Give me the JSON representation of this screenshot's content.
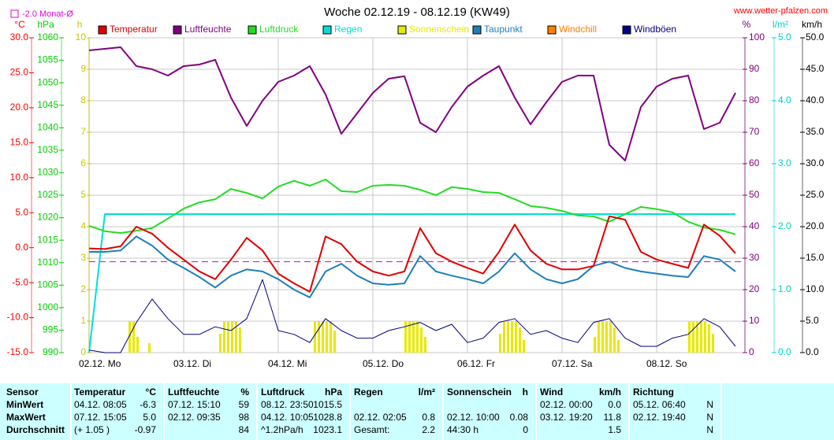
{
  "chart_data": {
    "type": "line",
    "title": "Woche 02.12.19 - 08.12.19 (KW49)",
    "source": "www.wetter-pfalzen.com",
    "monthly_mean": {
      "value": -2.0,
      "label": "-2.0 Monat-Ø",
      "color": "#dd00dd"
    },
    "categories": [
      "02.12.  Mo",
      "03.12.  Di",
      "04.12.  Mi",
      "05.12.  Do",
      "06.12.  Fr",
      "07.12.  Sa",
      "08.12.  So"
    ],
    "x": [
      0,
      4,
      8,
      12,
      16,
      20,
      24,
      28,
      32,
      36,
      40,
      44,
      48,
      52,
      56,
      60,
      64,
      68,
      72,
      76,
      80,
      84,
      88,
      92,
      96,
      100,
      104,
      108,
      112,
      116,
      120,
      124,
      128,
      132,
      136,
      140,
      144,
      148,
      152,
      156,
      160,
      164
    ],
    "xlim": [
      0,
      166.4
    ],
    "grid": true,
    "axes": {
      "temp": {
        "label": "°C",
        "color": "#ff0000",
        "ylim": [
          -15,
          30
        ],
        "yticks": [
          {
            "value": -15,
            "label": "-15.0"
          },
          {
            "value": -10,
            "label": "-10.0"
          },
          {
            "value": -5,
            "label": "-5.0"
          },
          {
            "value": 0,
            "label": "0.0"
          },
          {
            "value": 5,
            "label": "5.0"
          },
          {
            "value": 10,
            "label": "10.0"
          },
          {
            "value": 15,
            "label": "15.0"
          },
          {
            "value": 20,
            "label": "20.0"
          },
          {
            "value": 25,
            "label": "25.0"
          },
          {
            "value": 30,
            "label": "30.0"
          }
        ]
      },
      "pressure": {
        "label": "hPa",
        "color": "#00cc00",
        "ylim": [
          990,
          1060
        ],
        "yticks": [
          990,
          995,
          1000,
          1005,
          1010,
          1015,
          1020,
          1025,
          1030,
          1035,
          1040,
          1045,
          1050,
          1055,
          1060
        ]
      },
      "sun": {
        "label": "h",
        "color": "#c8c800",
        "ylim": [
          0,
          10
        ],
        "yticks": [
          0,
          1,
          2,
          3,
          4,
          5,
          6,
          7,
          8,
          9,
          10
        ]
      },
      "hum": {
        "label": "%",
        "color": "#800080",
        "ylim": [
          0,
          100
        ],
        "yticks": [
          0,
          10,
          20,
          30,
          40,
          50,
          60,
          70,
          80,
          90,
          100
        ]
      },
      "rain": {
        "label": "l/m²",
        "color": "#00cccc",
        "ylim": [
          0,
          5
        ],
        "yticks": [
          {
            "value": 0,
            "label": "0.0"
          },
          {
            "value": 1,
            "label": "1.0"
          },
          {
            "value": 2,
            "label": "2.0"
          },
          {
            "value": 3,
            "label": "3.0"
          },
          {
            "value": 4,
            "label": "4.0"
          },
          {
            "value": 5,
            "label": "5.0"
          }
        ]
      },
      "wind": {
        "label": "km/h",
        "color": "#000000",
        "ylim": [
          0,
          50
        ],
        "yticks": [
          {
            "value": 0,
            "label": "0.0"
          },
          {
            "value": 5,
            "label": "5.0"
          },
          {
            "value": 10,
            "label": "10.0"
          },
          {
            "value": 15,
            "label": "15.0"
          },
          {
            "value": 20,
            "label": "20.0"
          },
          {
            "value": 25,
            "label": "25.0"
          },
          {
            "value": 30,
            "label": "30.0"
          },
          {
            "value": 35,
            "label": "35.0"
          },
          {
            "value": 40,
            "label": "40.0"
          },
          {
            "value": 45,
            "label": "45.0"
          },
          {
            "value": 50,
            "label": "50.0"
          }
        ]
      }
    },
    "series": [
      {
        "name": "Temperatur",
        "color": "#e00000",
        "axis": "temp",
        "values": [
          -0.1,
          -0.2,
          0.2,
          3.0,
          2.0,
          0.0,
          -1.7,
          -3.4,
          -4.5,
          -1.7,
          1.4,
          -0.4,
          -3.7,
          -5.1,
          -6.3,
          1.6,
          0.5,
          -2.0,
          -3.4,
          -4.0,
          -3.4,
          2.8,
          -0.8,
          -2.0,
          -2.9,
          -3.7,
          -0.6,
          3.3,
          -0.4,
          -2.3,
          -3.1,
          -3.1,
          -2.6,
          4.5,
          4.0,
          -0.6,
          -1.7,
          -2.3,
          -2.9,
          3.3,
          1.7,
          -0.8
        ]
      },
      {
        "name": "Luftfeuchte",
        "color": "#800080",
        "axis": "hum",
        "values": [
          96,
          96.5,
          97,
          91,
          90,
          88,
          91,
          91.5,
          93,
          81,
          72,
          80,
          86,
          88,
          91,
          82,
          69.5,
          76,
          82.5,
          87,
          87.8,
          73,
          70,
          78,
          84.5,
          88,
          91,
          81,
          72.5,
          79.5,
          86,
          88,
          88,
          66,
          61,
          78,
          84.5,
          87,
          88,
          71,
          73,
          82.5
        ]
      },
      {
        "name": "Luftdruck",
        "color": "#22dd22",
        "axis": "pressure",
        "values": [
          1018.2,
          1017.0,
          1016.6,
          1017.1,
          1017.7,
          1019.8,
          1022.0,
          1023.4,
          1024.1,
          1026.4,
          1025.5,
          1024.3,
          1026.9,
          1028.2,
          1027.1,
          1028.5,
          1025.9,
          1025.7,
          1027.1,
          1027.3,
          1027.1,
          1026.2,
          1025.0,
          1026.8,
          1026.4,
          1025.7,
          1025.5,
          1024.1,
          1022.6,
          1022.2,
          1021.5,
          1020.5,
          1020.3,
          1019.1,
          1020.8,
          1022.4,
          1021.9,
          1021.2,
          1019.1,
          1017.8,
          1017.3,
          1016.3
        ]
      },
      {
        "name": "Regen",
        "color": "#00dddd",
        "axis": "rain",
        "values": [
          0,
          2.2,
          2.2,
          2.2,
          2.2,
          2.2,
          2.2,
          2.2,
          2.2,
          2.2,
          2.2,
          2.2,
          2.2,
          2.2,
          2.2,
          2.2,
          2.2,
          2.2,
          2.2,
          2.2,
          2.2,
          2.2,
          2.2,
          2.2,
          2.2,
          2.2,
          2.2,
          2.2,
          2.2,
          2.2,
          2.2,
          2.2,
          2.2,
          2.2,
          2.2,
          2.2,
          2.2,
          2.2,
          2.2,
          2.2,
          2.2,
          2.2
        ]
      },
      {
        "name": "Sonnenschein",
        "color": "#e8e800",
        "axis": "sun",
        "kind": "bar",
        "x": [
          10,
          11,
          12,
          15,
          33,
          34,
          35,
          36,
          37,
          38,
          57,
          58,
          59,
          60,
          61,
          62,
          80,
          81,
          82,
          83,
          84,
          85,
          104,
          105,
          106,
          107,
          108,
          109,
          110,
          128,
          129,
          130,
          131,
          132,
          133,
          134,
          152,
          153,
          154,
          155,
          156,
          157,
          158
        ],
        "values": [
          1,
          1,
          0.5,
          0.3,
          0.6,
          1,
          1,
          1,
          1,
          0.8,
          1,
          1,
          1,
          1,
          1,
          0.7,
          1,
          1,
          1,
          1,
          0.8,
          0.5,
          0.6,
          1,
          1,
          1,
          1,
          0.8,
          0.4,
          0.5,
          1,
          1,
          1,
          1,
          0.8,
          0.4,
          1,
          1,
          1,
          1,
          1,
          0.9,
          0.6
        ]
      },
      {
        "name": "Taupunkt",
        "color": "#1e7fb8",
        "axis": "temp",
        "values": [
          -0.6,
          -0.6,
          -0.4,
          1.6,
          0.3,
          -1.7,
          -2.9,
          -4.2,
          -5.7,
          -4.0,
          -3.1,
          -3.4,
          -4.5,
          -6.0,
          -7.1,
          -3.4,
          -2.3,
          -4.0,
          -5.1,
          -5.3,
          -5.1,
          -1.2,
          -3.4,
          -4.0,
          -4.5,
          -5.1,
          -3.4,
          -0.8,
          -3.1,
          -4.5,
          -5.1,
          -4.5,
          -2.6,
          -2.0,
          -2.9,
          -3.4,
          -3.7,
          -4.0,
          -4.2,
          -1.2,
          -1.7,
          -3.4
        ]
      },
      {
        "name": "Windchill",
        "color": "#ff8000",
        "axis": "temp"
      },
      {
        "name": "Windböen",
        "color": "#000080",
        "axis": "wind",
        "values": [
          0.4,
          0,
          0,
          4.8,
          8.5,
          5.4,
          2.9,
          2.9,
          4.1,
          3.5,
          5.4,
          11.6,
          3.5,
          2.9,
          1.6,
          5.4,
          3.5,
          2.3,
          2.3,
          3.5,
          4.1,
          4.8,
          3.5,
          4.5,
          1.6,
          2.3,
          4.8,
          5.4,
          2.9,
          3.5,
          2.3,
          1.6,
          4.8,
          5.4,
          2.3,
          1.0,
          1.0,
          2.3,
          2.9,
          5.4,
          4.1,
          1.0
        ]
      }
    ]
  },
  "table": {
    "header": [
      "Sensor",
      "Temperatur",
      "°C",
      "Luftfeuchte",
      "%",
      "Luftdruck",
      "hPa",
      "Regen",
      "l/m²",
      "Sonnenschein",
      "h",
      "Wind",
      "km/h",
      "Richtung",
      null
    ],
    "rows": [
      [
        "MinWert",
        "04.12.  08:05",
        "-6.3",
        "07.12.  15:10",
        "59",
        "08.12.  23:50",
        "1015.5",
        null,
        null,
        null,
        null,
        "02.12.  00:00",
        "0.0",
        "05.12.  06:40",
        "N"
      ],
      [
        "MaxWert",
        "07.12.  15:05",
        "5.0",
        "02.12.  09:35",
        "98",
        "04.12.  10:05",
        "1028.8",
        "02.12.  02:05",
        "0.8",
        "02.12.  10:00",
        "0.08",
        "03.12.  19:20",
        "11.8",
        "02.12.  19:40",
        "N"
      ],
      [
        "Durchschnitt",
        "(+ 1.05 )",
        "-0.97",
        null,
        "84",
        "^1.2hPa/h",
        "1023.1",
        "Gesamt:",
        "2.2",
        "44:30 h",
        "0",
        null,
        "1.5",
        null,
        "N"
      ]
    ]
  }
}
